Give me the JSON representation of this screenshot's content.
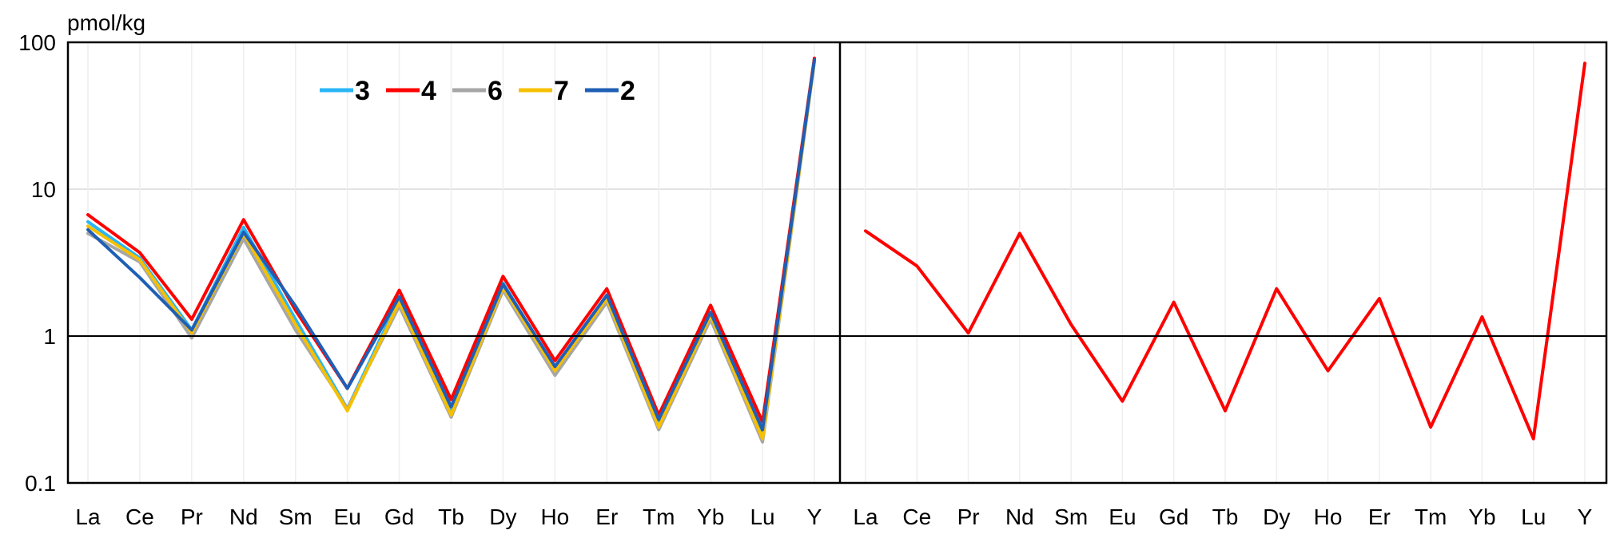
{
  "chart_data": [
    {
      "type": "line",
      "panel": "left",
      "unit_label": "pmol/kg",
      "title": "",
      "xlabel": "",
      "ylabel": "",
      "yscale": "log",
      "ylim": [
        0.1,
        100
      ],
      "yticks": [
        0.1,
        1,
        10,
        100
      ],
      "ytick_labels": [
        "0.1",
        "1",
        "10",
        "100"
      ],
      "reference_line": 1,
      "grid": "horizontal major gridlines",
      "legend_position": "top-center",
      "categories": [
        "La",
        "Ce",
        "Pr",
        "Nd",
        "Sm",
        "Eu",
        "Gd",
        "Tb",
        "Dy",
        "Ho",
        "Er",
        "Tm",
        "Yb",
        "Lu",
        "Y"
      ],
      "series": [
        {
          "name": "3",
          "color": "#29b6f6",
          "values": [
            6.0,
            3.4,
            1.1,
            5.5,
            1.3,
            0.32,
            1.8,
            0.31,
            2.3,
            0.6,
            1.85,
            0.25,
            1.4,
            0.21,
            75
          ]
        },
        {
          "name": "4",
          "color": "#ff0000",
          "values": [
            6.7,
            3.7,
            1.3,
            6.2,
            1.5,
            0.44,
            2.05,
            0.37,
            2.55,
            0.68,
            2.1,
            0.29,
            1.62,
            0.26,
            78
          ]
        },
        {
          "name": "6",
          "color": "#a6a6a6",
          "values": [
            5.0,
            3.2,
            0.97,
            4.6,
            1.1,
            0.32,
            1.6,
            0.28,
            2.05,
            0.54,
            1.7,
            0.23,
            1.3,
            0.19,
            74
          ]
        },
        {
          "name": "7",
          "color": "#f6c000",
          "values": [
            5.6,
            3.3,
            1.05,
            5.0,
            1.2,
            0.31,
            1.7,
            0.29,
            2.15,
            0.58,
            1.8,
            0.24,
            1.38,
            0.2,
            75
          ]
        },
        {
          "name": "2",
          "color": "#1f5fb5",
          "values": [
            5.3,
            2.5,
            1.1,
            5.1,
            1.6,
            0.44,
            1.85,
            0.33,
            2.25,
            0.62,
            1.9,
            0.27,
            1.45,
            0.23,
            76
          ]
        }
      ]
    },
    {
      "type": "line",
      "panel": "right",
      "title": "",
      "xlabel": "",
      "ylabel": "",
      "yscale": "log",
      "ylim": [
        0.1,
        100
      ],
      "reference_line": 1,
      "grid": "horizontal major gridlines",
      "categories": [
        "La",
        "Ce",
        "Pr",
        "Nd",
        "Sm",
        "Eu",
        "Gd",
        "Tb",
        "Dy",
        "Ho",
        "Er",
        "Tm",
        "Yb",
        "Lu",
        "Y"
      ],
      "series": [
        {
          "color": "#ff0000",
          "values": [
            5.2,
            3.0,
            1.05,
            5.0,
            1.2,
            0.36,
            1.7,
            0.31,
            2.1,
            0.58,
            1.8,
            0.24,
            1.35,
            0.2,
            72
          ]
        }
      ]
    }
  ]
}
